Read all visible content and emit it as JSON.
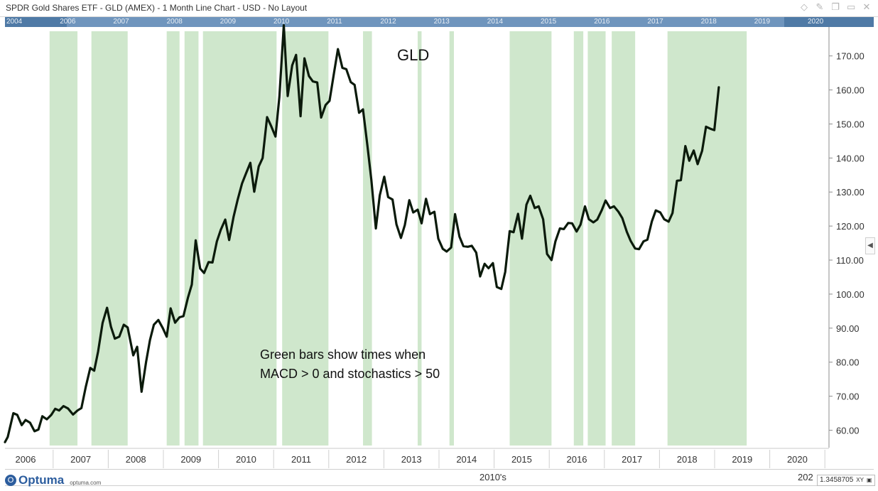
{
  "window": {
    "title": "SPDR Gold Shares ETF - GLD (AMEX) - 1 Month Line Chart - USD - No Layout",
    "icons": [
      "diamond-icon",
      "pin-icon",
      "copy-icon",
      "restore-icon",
      "close-icon"
    ]
  },
  "overview": {
    "years": [
      "2004",
      "2006",
      "2007",
      "2008",
      "2009",
      "2010",
      "2011",
      "2012",
      "2013",
      "2014",
      "2015",
      "2016",
      "2017",
      "2018",
      "2019",
      "2020"
    ]
  },
  "bottom": {
    "decade": "2010's",
    "next_decade": "202",
    "logo": "Optuma",
    "logo_url": "optuma.com",
    "readout_value": "1.3458705",
    "readout_mode": "XY"
  },
  "colors": {
    "line": "#0b1a0b",
    "shade": "#cfe7cc",
    "overview": "#4f7aa6",
    "axis_text": "#333333"
  },
  "chart_data": {
    "type": "line",
    "title": "GLD",
    "annotation": [
      "Green bars show times when",
      "MACD > 0 and stochastics > 50"
    ],
    "ylim": [
      55.5,
      178.5
    ],
    "xlim": [
      2005.55,
      2020.3
    ],
    "x_tick_labels": [
      "2006",
      "2007",
      "2008",
      "2009",
      "2010",
      "2011",
      "2012",
      "2013",
      "2014",
      "2015",
      "2016",
      "2017",
      "2018",
      "2019",
      "2020"
    ],
    "y_ticks": [
      60,
      70,
      80,
      90,
      100,
      110,
      120,
      130,
      140,
      150,
      160,
      170
    ],
    "y_tick_labels": [
      "60.00",
      "70.00",
      "80.00",
      "90.00",
      "100.00",
      "110.00",
      "120.00",
      "130.00",
      "140.00",
      "150.00",
      "160.00",
      "170.00"
    ],
    "grid": false,
    "shaded_periods": [
      [
        2006.35,
        2006.85
      ],
      [
        2007.1,
        2007.75
      ],
      [
        2008.45,
        2008.68
      ],
      [
        2008.77,
        2009.02
      ],
      [
        2009.1,
        2010.42
      ],
      [
        2010.52,
        2011.35
      ],
      [
        2011.97,
        2012.13
      ],
      [
        2012.95,
        2013.02
      ],
      [
        2013.52,
        2013.6
      ],
      [
        2014.6,
        2015.35
      ],
      [
        2015.75,
        2015.92
      ],
      [
        2016.0,
        2016.32
      ],
      [
        2016.43,
        2016.85
      ],
      [
        2017.43,
        2018.85
      ]
    ],
    "series": [
      {
        "points": [
          [
            2005.55,
            56.5
          ],
          [
            2005.6,
            58
          ],
          [
            2005.7,
            65
          ],
          [
            2005.77,
            64.5
          ],
          [
            2005.85,
            61.5
          ],
          [
            2005.92,
            63
          ],
          [
            2006.0,
            62.2
          ],
          [
            2006.08,
            59.7
          ],
          [
            2006.15,
            60.2
          ],
          [
            2006.22,
            64.1
          ],
          [
            2006.3,
            63.2
          ],
          [
            2006.38,
            64.5
          ],
          [
            2006.45,
            66.3
          ],
          [
            2006.52,
            65.8
          ],
          [
            2006.6,
            67.1
          ],
          [
            2006.68,
            66.4
          ],
          [
            2006.77,
            64.6
          ],
          [
            2006.85,
            65.8
          ],
          [
            2006.92,
            66.5
          ],
          [
            2007.0,
            72.8
          ],
          [
            2007.08,
            78.3
          ],
          [
            2007.15,
            77.5
          ],
          [
            2007.22,
            83.1
          ],
          [
            2007.3,
            91.5
          ],
          [
            2007.38,
            96
          ],
          [
            2007.45,
            90.4
          ],
          [
            2007.52,
            86.9
          ],
          [
            2007.6,
            87.5
          ],
          [
            2007.68,
            91
          ],
          [
            2007.75,
            90.2
          ],
          [
            2007.85,
            82
          ],
          [
            2007.92,
            84.5
          ],
          [
            2008.0,
            71.3
          ],
          [
            2008.08,
            80
          ],
          [
            2008.15,
            86.5
          ],
          [
            2008.22,
            91
          ],
          [
            2008.3,
            92.4
          ],
          [
            2008.38,
            90
          ],
          [
            2008.45,
            87.5
          ],
          [
            2008.52,
            95.8
          ],
          [
            2008.6,
            91.6
          ],
          [
            2008.68,
            93.2
          ],
          [
            2008.75,
            93.5
          ],
          [
            2008.83,
            98.9
          ],
          [
            2008.9,
            102.8
          ],
          [
            2008.97,
            115.8
          ],
          [
            2009.05,
            107.5
          ],
          [
            2009.12,
            106.2
          ],
          [
            2009.2,
            109.4
          ],
          [
            2009.27,
            109.3
          ],
          [
            2009.35,
            115.5
          ],
          [
            2009.42,
            118.9
          ],
          [
            2009.5,
            121.9
          ],
          [
            2009.57,
            115.9
          ],
          [
            2009.65,
            122.8
          ],
          [
            2009.72,
            127.6
          ],
          [
            2009.8,
            132.5
          ],
          [
            2009.87,
            135.4
          ],
          [
            2009.95,
            138.6
          ],
          [
            2010.02,
            130.1
          ],
          [
            2010.1,
            137.5
          ],
          [
            2010.17,
            140
          ],
          [
            2010.25,
            152
          ],
          [
            2010.32,
            149.5
          ],
          [
            2010.4,
            146.3
          ],
          [
            2010.47,
            158
          ],
          [
            2010.55,
            179
          ],
          [
            2010.62,
            158.2
          ],
          [
            2010.7,
            167.2
          ],
          [
            2010.77,
            170.3
          ],
          [
            2010.85,
            152.3
          ],
          [
            2010.92,
            169.3
          ],
          [
            2011.0,
            164.1
          ],
          [
            2011.07,
            162.5
          ],
          [
            2011.15,
            162.2
          ],
          [
            2011.22,
            151.9
          ],
          [
            2011.3,
            155.6
          ],
          [
            2011.37,
            156.8
          ],
          [
            2011.45,
            165
          ],
          [
            2011.52,
            172
          ],
          [
            2011.6,
            166.5
          ],
          [
            2011.67,
            166.1
          ],
          [
            2011.75,
            162.3
          ],
          [
            2011.82,
            161.5
          ],
          [
            2011.9,
            153.3
          ],
          [
            2011.97,
            154.3
          ],
          [
            2012.05,
            143.5
          ],
          [
            2012.12,
            133.5
          ],
          [
            2012.2,
            119.3
          ],
          [
            2012.27,
            129
          ],
          [
            2012.35,
            134.5
          ],
          [
            2012.42,
            128.5
          ],
          [
            2012.5,
            127.8
          ],
          [
            2012.57,
            120.5
          ],
          [
            2012.65,
            116.5
          ],
          [
            2012.72,
            120.3
          ],
          [
            2012.8,
            127.6
          ],
          [
            2012.87,
            124
          ],
          [
            2012.95,
            124.8
          ],
          [
            2013.02,
            120.8
          ],
          [
            2013.1,
            128
          ],
          [
            2013.17,
            123.5
          ],
          [
            2013.25,
            124.2
          ],
          [
            2013.32,
            116.3
          ],
          [
            2013.4,
            113.3
          ],
          [
            2013.47,
            112.5
          ],
          [
            2013.55,
            113.7
          ],
          [
            2013.62,
            123.5
          ],
          [
            2013.7,
            116.9
          ],
          [
            2013.77,
            114.1
          ],
          [
            2013.85,
            113.9
          ],
          [
            2013.92,
            114.2
          ],
          [
            2014.0,
            112.2
          ],
          [
            2014.07,
            105.2
          ],
          [
            2014.15,
            108.9
          ],
          [
            2014.22,
            107.6
          ],
          [
            2014.3,
            109.1
          ],
          [
            2014.37,
            102.1
          ],
          [
            2014.45,
            101.5
          ],
          [
            2014.52,
            106.5
          ],
          [
            2014.6,
            118.5
          ],
          [
            2014.67,
            118.2
          ],
          [
            2014.75,
            123.6
          ],
          [
            2014.82,
            116.3
          ],
          [
            2014.9,
            126.3
          ],
          [
            2014.97,
            128.9
          ],
          [
            2015.05,
            125.3
          ],
          [
            2015.12,
            125.8
          ],
          [
            2015.2,
            122
          ],
          [
            2015.27,
            111.8
          ],
          [
            2015.35,
            110
          ],
          [
            2015.42,
            115.5
          ],
          [
            2015.5,
            119.3
          ],
          [
            2015.57,
            119.1
          ],
          [
            2015.65,
            120.9
          ],
          [
            2015.72,
            120.8
          ],
          [
            2015.8,
            118.4
          ],
          [
            2015.87,
            120.4
          ],
          [
            2015.95,
            125.8
          ],
          [
            2016.02,
            122
          ],
          [
            2016.1,
            121.1
          ],
          [
            2016.17,
            121.9
          ],
          [
            2016.25,
            124.6
          ],
          [
            2016.32,
            127.5
          ],
          [
            2016.4,
            125.3
          ],
          [
            2016.47,
            125.8
          ],
          [
            2016.55,
            124.2
          ],
          [
            2016.62,
            122.3
          ],
          [
            2016.7,
            118.3
          ],
          [
            2016.77,
            115.6
          ],
          [
            2016.85,
            113.4
          ],
          [
            2016.92,
            113.2
          ],
          [
            2017.0,
            115.5
          ],
          [
            2017.07,
            116
          ],
          [
            2017.15,
            121.4
          ],
          [
            2017.22,
            124.6
          ],
          [
            2017.3,
            124
          ],
          [
            2017.37,
            122
          ],
          [
            2017.45,
            121.3
          ],
          [
            2017.52,
            123.8
          ],
          [
            2017.6,
            133.3
          ],
          [
            2017.67,
            133.5
          ],
          [
            2017.75,
            143.5
          ],
          [
            2017.82,
            139.2
          ],
          [
            2017.9,
            142.2
          ],
          [
            2017.97,
            138.2
          ],
          [
            2018.05,
            142.1
          ],
          [
            2018.12,
            149.2
          ],
          [
            2018.2,
            148.6
          ],
          [
            2018.27,
            148.2
          ],
          [
            2018.35,
            160.8
          ]
        ]
      }
    ]
  }
}
